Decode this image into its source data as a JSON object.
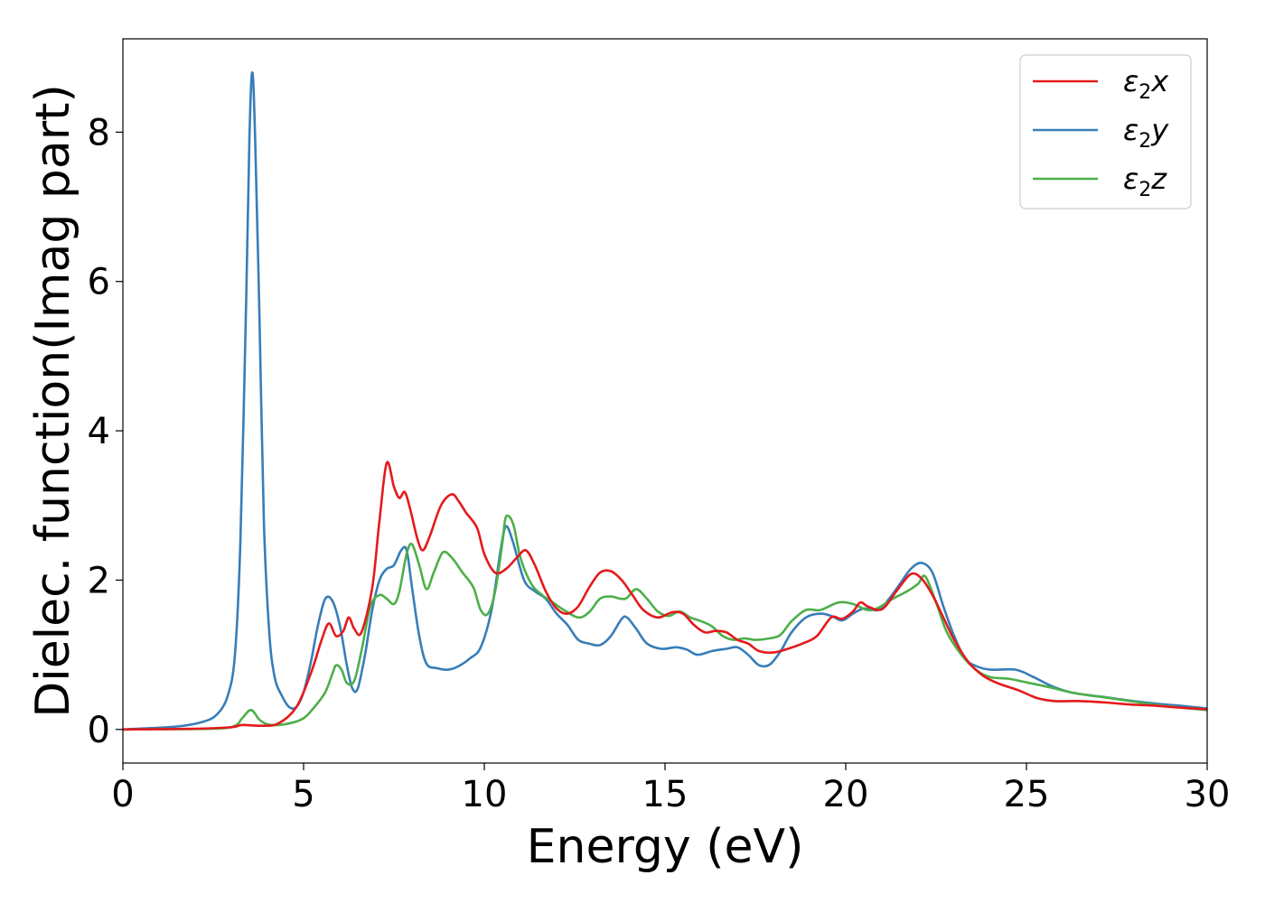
{
  "chart_data": {
    "type": "line",
    "xlabel": "Energy (eV)",
    "ylabel": "Dielec. function(Imag part)",
    "xlim": [
      0,
      30
    ],
    "ylim": [
      -0.45,
      9.25
    ],
    "xticks": [
      0,
      5,
      10,
      15,
      20,
      25,
      30
    ],
    "yticks": [
      0,
      2,
      4,
      6,
      8
    ],
    "grid": false,
    "legend_position": "top-right",
    "series": [
      {
        "name": "ε2x",
        "legend": {
          "base": "ε",
          "sub": "2",
          "suffix": "x"
        },
        "color": "#e41a1c",
        "points": [
          [
            0,
            0
          ],
          [
            2,
            0.01
          ],
          [
            3,
            0.03
          ],
          [
            3.3,
            0.06
          ],
          [
            3.8,
            0.05
          ],
          [
            4.3,
            0.08
          ],
          [
            4.8,
            0.3
          ],
          [
            5.2,
            0.75
          ],
          [
            5.5,
            1.2
          ],
          [
            5.7,
            1.42
          ],
          [
            5.9,
            1.25
          ],
          [
            6.1,
            1.32
          ],
          [
            6.25,
            1.5
          ],
          [
            6.4,
            1.35
          ],
          [
            6.6,
            1.3
          ],
          [
            6.9,
            1.9
          ],
          [
            7.1,
            2.8
          ],
          [
            7.3,
            3.57
          ],
          [
            7.5,
            3.25
          ],
          [
            7.65,
            3.1
          ],
          [
            7.8,
            3.18
          ],
          [
            7.95,
            2.95
          ],
          [
            8.15,
            2.55
          ],
          [
            8.3,
            2.4
          ],
          [
            8.5,
            2.6
          ],
          [
            8.8,
            3.0
          ],
          [
            9.1,
            3.15
          ],
          [
            9.3,
            3.05
          ],
          [
            9.5,
            2.9
          ],
          [
            9.8,
            2.7
          ],
          [
            10.0,
            2.35
          ],
          [
            10.3,
            2.1
          ],
          [
            10.6,
            2.15
          ],
          [
            10.9,
            2.3
          ],
          [
            11.15,
            2.4
          ],
          [
            11.4,
            2.2
          ],
          [
            11.7,
            1.85
          ],
          [
            12.0,
            1.62
          ],
          [
            12.3,
            1.55
          ],
          [
            12.6,
            1.65
          ],
          [
            12.9,
            1.9
          ],
          [
            13.2,
            2.1
          ],
          [
            13.5,
            2.12
          ],
          [
            13.8,
            2.0
          ],
          [
            14.1,
            1.8
          ],
          [
            14.4,
            1.6
          ],
          [
            14.8,
            1.5
          ],
          [
            15.2,
            1.57
          ],
          [
            15.5,
            1.55
          ],
          [
            15.8,
            1.4
          ],
          [
            16.1,
            1.3
          ],
          [
            16.4,
            1.32
          ],
          [
            16.7,
            1.3
          ],
          [
            17.0,
            1.2
          ],
          [
            17.3,
            1.15
          ],
          [
            17.6,
            1.05
          ],
          [
            18.0,
            1.03
          ],
          [
            18.4,
            1.08
          ],
          [
            18.8,
            1.15
          ],
          [
            19.2,
            1.25
          ],
          [
            19.6,
            1.5
          ],
          [
            19.9,
            1.48
          ],
          [
            20.2,
            1.58
          ],
          [
            20.4,
            1.7
          ],
          [
            20.6,
            1.65
          ],
          [
            20.9,
            1.6
          ],
          [
            21.1,
            1.65
          ],
          [
            21.4,
            1.85
          ],
          [
            21.8,
            2.08
          ],
          [
            22.1,
            2.02
          ],
          [
            22.4,
            1.8
          ],
          [
            22.7,
            1.5
          ],
          [
            23.0,
            1.2
          ],
          [
            23.4,
            0.9
          ],
          [
            23.8,
            0.72
          ],
          [
            24.2,
            0.62
          ],
          [
            24.8,
            0.52
          ],
          [
            25.3,
            0.42
          ],
          [
            25.8,
            0.38
          ],
          [
            26.5,
            0.38
          ],
          [
            27.2,
            0.36
          ],
          [
            28.0,
            0.33
          ],
          [
            28.5,
            0.32
          ],
          [
            29.0,
            0.3
          ],
          [
            30,
            0.27
          ]
        ]
      },
      {
        "name": "ε2y",
        "legend": {
          "base": "ε",
          "sub": "2",
          "suffix": "y"
        },
        "color": "#377eb8",
        "points": [
          [
            0,
            0
          ],
          [
            1.5,
            0.04
          ],
          [
            2.2,
            0.1
          ],
          [
            2.6,
            0.2
          ],
          [
            2.9,
            0.45
          ],
          [
            3.1,
            1.0
          ],
          [
            3.25,
            2.5
          ],
          [
            3.4,
            5.5
          ],
          [
            3.5,
            7.9
          ],
          [
            3.58,
            8.8
          ],
          [
            3.66,
            7.9
          ],
          [
            3.78,
            5.5
          ],
          [
            3.9,
            2.8
          ],
          [
            4.05,
            1.3
          ],
          [
            4.2,
            0.7
          ],
          [
            4.4,
            0.45
          ],
          [
            4.6,
            0.3
          ],
          [
            4.8,
            0.3
          ],
          [
            5.0,
            0.5
          ],
          [
            5.2,
            0.9
          ],
          [
            5.4,
            1.4
          ],
          [
            5.6,
            1.75
          ],
          [
            5.8,
            1.72
          ],
          [
            6.0,
            1.4
          ],
          [
            6.2,
            0.85
          ],
          [
            6.35,
            0.55
          ],
          [
            6.5,
            0.55
          ],
          [
            6.7,
            1.0
          ],
          [
            6.9,
            1.6
          ],
          [
            7.1,
            2.0
          ],
          [
            7.3,
            2.15
          ],
          [
            7.5,
            2.2
          ],
          [
            7.7,
            2.4
          ],
          [
            7.85,
            2.4
          ],
          [
            8.0,
            1.9
          ],
          [
            8.2,
            1.25
          ],
          [
            8.4,
            0.88
          ],
          [
            8.7,
            0.82
          ],
          [
            9.0,
            0.8
          ],
          [
            9.3,
            0.85
          ],
          [
            9.6,
            0.95
          ],
          [
            9.9,
            1.1
          ],
          [
            10.2,
            1.6
          ],
          [
            10.45,
            2.4
          ],
          [
            10.6,
            2.72
          ],
          [
            10.8,
            2.5
          ],
          [
            11.1,
            2.0
          ],
          [
            11.4,
            1.85
          ],
          [
            11.7,
            1.75
          ],
          [
            12.0,
            1.55
          ],
          [
            12.3,
            1.4
          ],
          [
            12.6,
            1.2
          ],
          [
            12.9,
            1.15
          ],
          [
            13.2,
            1.13
          ],
          [
            13.5,
            1.25
          ],
          [
            13.8,
            1.48
          ],
          [
            13.95,
            1.5
          ],
          [
            14.2,
            1.35
          ],
          [
            14.5,
            1.15
          ],
          [
            14.9,
            1.08
          ],
          [
            15.3,
            1.1
          ],
          [
            15.6,
            1.07
          ],
          [
            15.9,
            1.0
          ],
          [
            16.3,
            1.05
          ],
          [
            16.7,
            1.08
          ],
          [
            17.0,
            1.1
          ],
          [
            17.3,
            1.0
          ],
          [
            17.6,
            0.86
          ],
          [
            17.9,
            0.87
          ],
          [
            18.2,
            1.05
          ],
          [
            18.5,
            1.3
          ],
          [
            18.9,
            1.5
          ],
          [
            19.3,
            1.55
          ],
          [
            19.6,
            1.52
          ],
          [
            19.9,
            1.46
          ],
          [
            20.2,
            1.55
          ],
          [
            20.5,
            1.62
          ],
          [
            20.9,
            1.6
          ],
          [
            21.2,
            1.75
          ],
          [
            21.5,
            1.95
          ],
          [
            21.8,
            2.15
          ],
          [
            22.1,
            2.23
          ],
          [
            22.4,
            2.1
          ],
          [
            22.7,
            1.65
          ],
          [
            23.0,
            1.25
          ],
          [
            23.3,
            0.95
          ],
          [
            23.6,
            0.85
          ],
          [
            24.0,
            0.8
          ],
          [
            24.7,
            0.8
          ],
          [
            25.2,
            0.7
          ],
          [
            25.7,
            0.58
          ],
          [
            26.2,
            0.5
          ],
          [
            26.7,
            0.46
          ],
          [
            27.2,
            0.43
          ],
          [
            27.8,
            0.39
          ],
          [
            28.5,
            0.35
          ],
          [
            29.2,
            0.32
          ],
          [
            30,
            0.28
          ]
        ]
      },
      {
        "name": "ε2z",
        "legend": {
          "base": "ε",
          "sub": "2",
          "suffix": "z"
        },
        "color": "#4daf4a",
        "points": [
          [
            0,
            0
          ],
          [
            2.5,
            0.01
          ],
          [
            3.1,
            0.05
          ],
          [
            3.3,
            0.15
          ],
          [
            3.55,
            0.26
          ],
          [
            3.8,
            0.12
          ],
          [
            4.1,
            0.06
          ],
          [
            4.6,
            0.08
          ],
          [
            5.0,
            0.15
          ],
          [
            5.3,
            0.3
          ],
          [
            5.6,
            0.5
          ],
          [
            5.8,
            0.75
          ],
          [
            5.9,
            0.86
          ],
          [
            6.05,
            0.8
          ],
          [
            6.2,
            0.62
          ],
          [
            6.4,
            0.65
          ],
          [
            6.6,
            1.05
          ],
          [
            6.85,
            1.65
          ],
          [
            7.1,
            1.8
          ],
          [
            7.3,
            1.75
          ],
          [
            7.5,
            1.68
          ],
          [
            7.65,
            1.85
          ],
          [
            7.85,
            2.35
          ],
          [
            8.0,
            2.48
          ],
          [
            8.2,
            2.2
          ],
          [
            8.4,
            1.88
          ],
          [
            8.6,
            2.1
          ],
          [
            8.85,
            2.37
          ],
          [
            9.1,
            2.3
          ],
          [
            9.4,
            2.1
          ],
          [
            9.7,
            1.9
          ],
          [
            9.9,
            1.6
          ],
          [
            10.1,
            1.55
          ],
          [
            10.3,
            1.85
          ],
          [
            10.5,
            2.5
          ],
          [
            10.6,
            2.85
          ],
          [
            10.8,
            2.75
          ],
          [
            11.0,
            2.3
          ],
          [
            11.3,
            1.95
          ],
          [
            11.6,
            1.8
          ],
          [
            11.9,
            1.7
          ],
          [
            12.2,
            1.6
          ],
          [
            12.6,
            1.5
          ],
          [
            12.9,
            1.57
          ],
          [
            13.2,
            1.75
          ],
          [
            13.5,
            1.78
          ],
          [
            13.9,
            1.75
          ],
          [
            14.2,
            1.88
          ],
          [
            14.5,
            1.75
          ],
          [
            14.8,
            1.58
          ],
          [
            15.1,
            1.52
          ],
          [
            15.4,
            1.58
          ],
          [
            15.7,
            1.5
          ],
          [
            16.0,
            1.45
          ],
          [
            16.3,
            1.38
          ],
          [
            16.6,
            1.25
          ],
          [
            16.9,
            1.2
          ],
          [
            17.2,
            1.22
          ],
          [
            17.5,
            1.2
          ],
          [
            17.9,
            1.22
          ],
          [
            18.2,
            1.27
          ],
          [
            18.5,
            1.45
          ],
          [
            18.9,
            1.6
          ],
          [
            19.3,
            1.6
          ],
          [
            19.8,
            1.7
          ],
          [
            20.2,
            1.68
          ],
          [
            20.6,
            1.6
          ],
          [
            20.9,
            1.63
          ],
          [
            21.3,
            1.75
          ],
          [
            21.7,
            1.85
          ],
          [
            22.0,
            1.95
          ],
          [
            22.2,
            2.05
          ],
          [
            22.5,
            1.7
          ],
          [
            22.8,
            1.3
          ],
          [
            23.2,
            1.0
          ],
          [
            23.6,
            0.8
          ],
          [
            24.0,
            0.7
          ],
          [
            24.5,
            0.68
          ],
          [
            25.0,
            0.63
          ],
          [
            25.6,
            0.57
          ],
          [
            26.2,
            0.5
          ],
          [
            26.7,
            0.46
          ],
          [
            27.3,
            0.42
          ],
          [
            28.0,
            0.37
          ],
          [
            28.7,
            0.32
          ],
          [
            29.3,
            0.29
          ],
          [
            30,
            0.26
          ]
        ]
      }
    ]
  }
}
